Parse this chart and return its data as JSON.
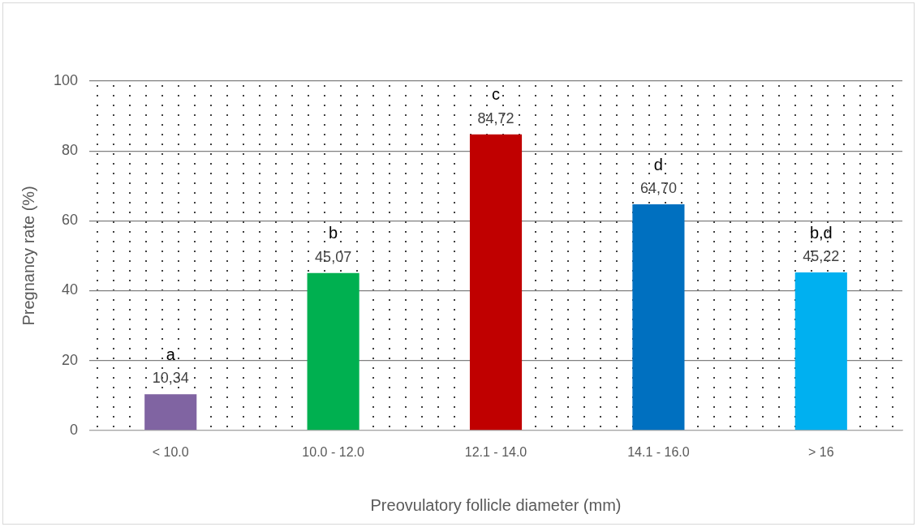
{
  "chart_data": {
    "type": "bar",
    "xlabel": "Preovulatory follicle diameter (mm)",
    "ylabel": "Pregnancy rate (%)",
    "categories": [
      "< 10.0",
      "10.0 - 12.0",
      "12.1 - 14.0",
      "14.1 - 16.0",
      "> 16"
    ],
    "values": [
      10.34,
      45.07,
      84.72,
      64.7,
      45.22
    ],
    "colors": [
      "#8064a2",
      "#00b050",
      "#c00000",
      "#0070c0",
      "#00b0f0"
    ],
    "value_labels": [
      "10,34",
      "45,07",
      "84,72",
      "64,70",
      "45,22"
    ],
    "annotations": [
      {
        "text": "a",
        "x": "< 10.0",
        "y": 10.34
      },
      {
        "text": "b",
        "x": "10.0 - 12.0",
        "y": 45.07
      },
      {
        "text": "c",
        "x": "12.1 - 14.0",
        "y": 84.72
      },
      {
        "text": "d",
        "x": "14.1 - 16.0",
        "y": 64.7
      },
      {
        "text": "b,d",
        "x": "> 16",
        "y": 45.22
      }
    ],
    "ylim": [
      0,
      100
    ],
    "yticks": [
      0,
      20,
      40,
      60,
      80,
      100
    ],
    "grid": "y",
    "legend": false
  }
}
